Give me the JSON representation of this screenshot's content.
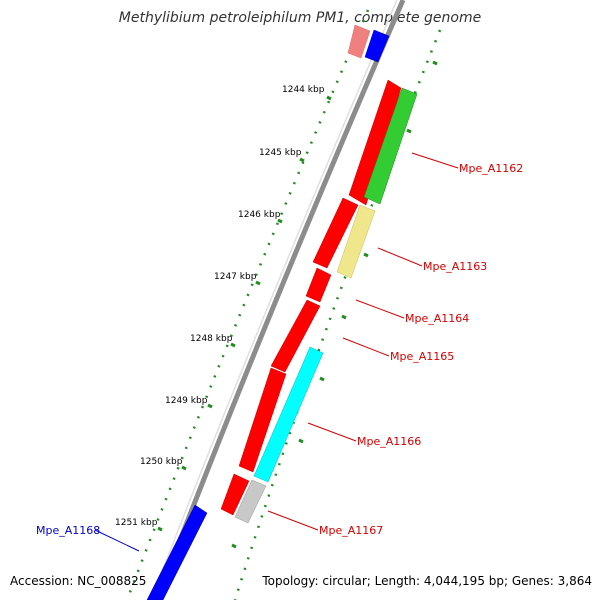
{
  "title": "Methylibium petroleiphilum PM1, complete genome",
  "footer": {
    "accession": "Accession: NC_008825",
    "summary": "Topology: circular; Length: 4,044,195 bp; Genes: 3,864"
  },
  "scale": {
    "unit": "kbp",
    "ticks": [
      {
        "kbp": 1244,
        "label": "1244 kbp"
      },
      {
        "kbp": 1245,
        "label": "1245 kbp"
      },
      {
        "kbp": 1246,
        "label": "1246 kbp"
      },
      {
        "kbp": 1247,
        "label": "1247 kbp"
      },
      {
        "kbp": 1248,
        "label": "1248 kbp"
      },
      {
        "kbp": 1249,
        "label": "1249 kbp"
      },
      {
        "kbp": 1250,
        "label": "1250 kbp"
      },
      {
        "kbp": 1251,
        "label": "1251 kbp"
      }
    ]
  },
  "gene_labels": [
    {
      "id": "Mpe_A1162",
      "text": "Mpe_A1162",
      "color": "#d40000"
    },
    {
      "id": "Mpe_A1163",
      "text": "Mpe_A1163",
      "color": "#d40000"
    },
    {
      "id": "Mpe_A1164",
      "text": "Mpe_A1164",
      "color": "#d40000"
    },
    {
      "id": "Mpe_A1165",
      "text": "Mpe_A1165",
      "color": "#d40000"
    },
    {
      "id": "Mpe_A1166",
      "text": "Mpe_A1166",
      "color": "#d40000"
    },
    {
      "id": "Mpe_A1167",
      "text": "Mpe_A1167",
      "color": "#d40000"
    },
    {
      "id": "Mpe_A1168",
      "text": "Mpe_A1168",
      "color": "#0000cc"
    }
  ],
  "colors": {
    "backbone": "#8c8c8c",
    "cds_forward": "#ff0000",
    "cds_reverse": "#0000ff",
    "trna": "#33cc33",
    "rrna": "#f0e68c",
    "gc_skew": "#00ffff",
    "other": "#c0c0c0",
    "ticks": "#228b22"
  }
}
